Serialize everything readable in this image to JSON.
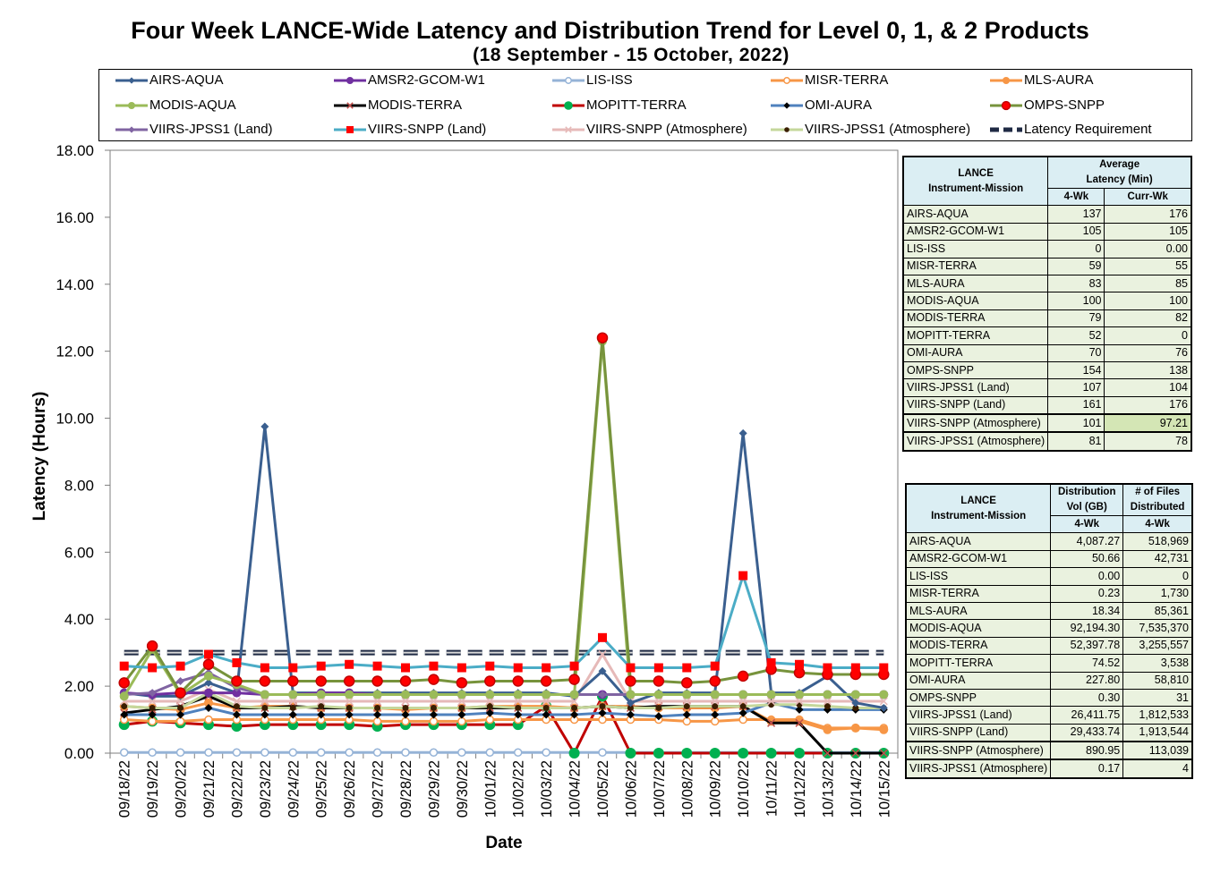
{
  "title": "Four Week LANCE-Wide Latency and Distribution Trend for Level 0, 1, & 2 Products",
  "subtitle": "(18  September   - 15  October,  2022)",
  "chart_data": {
    "type": "line",
    "ylabel": "Latency (Hours)",
    "xlabel": "Date",
    "ylim": [
      0,
      18
    ],
    "yticks": [
      "0.00",
      "2.00",
      "4.00",
      "6.00",
      "8.00",
      "10.00",
      "12.00",
      "14.00",
      "16.00",
      "18.00"
    ],
    "grid": false,
    "legend_position": "top",
    "x": [
      "09/18/22",
      "09/19/22",
      "09/20/22",
      "09/21/22",
      "09/22/22",
      "09/23/22",
      "09/24/22",
      "09/25/22",
      "09/26/22",
      "09/27/22",
      "09/28/22",
      "09/29/22",
      "09/30/22",
      "10/01/22",
      "10/02/22",
      "10/03/22",
      "10/04/22",
      "10/05/22",
      "10/06/22",
      "10/07/22",
      "10/08/22",
      "10/09/22",
      "10/10/22",
      "10/11/22",
      "10/12/22",
      "10/13/22",
      "10/14/22",
      "10/15/22"
    ],
    "series": [
      {
        "name": "AIRS-AQUA",
        "color": "#3a5f8f",
        "marker": "diamond",
        "values": [
          1.8,
          1.7,
          1.7,
          2.1,
          1.8,
          9.75,
          1.8,
          1.8,
          1.8,
          1.8,
          1.8,
          1.8,
          1.8,
          1.8,
          1.8,
          1.8,
          1.7,
          2.45,
          1.5,
          1.8,
          1.8,
          1.8,
          9.55,
          1.8,
          1.8,
          2.3,
          1.5,
          1.35
        ]
      },
      {
        "name": "AMSR2-GCOM-W1",
        "color": "#7030a0",
        "marker": "circle",
        "values": [
          1.8,
          1.75,
          1.8,
          1.8,
          1.8,
          1.75,
          1.75,
          1.8,
          1.8,
          1.75,
          1.75,
          1.75,
          1.75,
          1.75,
          1.75,
          1.75,
          1.75,
          1.75,
          1.75,
          1.75,
          1.75,
          1.75,
          1.75,
          1.75,
          1.75,
          1.75,
          1.75,
          1.75
        ]
      },
      {
        "name": "LIS-ISS",
        "color": "#95b3d7",
        "marker": "circle-open",
        "values": [
          0.02,
          0.02,
          0.02,
          0.02,
          0.02,
          0.02,
          0.02,
          0.02,
          0.02,
          0.02,
          0.02,
          0.02,
          0.02,
          0.02,
          0.02,
          0.02,
          0.02,
          0.02,
          0.02,
          0.02,
          0.02,
          0.02,
          0.02,
          0.02,
          0.02,
          0.02,
          0.02,
          0.02
        ]
      },
      {
        "name": "MISR-TERRA",
        "color": "#f79646",
        "marker": "circle-open",
        "values": [
          1.0,
          0.95,
          0.95,
          1.0,
          1.0,
          1.0,
          1.0,
          1.0,
          1.0,
          0.95,
          0.95,
          0.95,
          0.95,
          1.0,
          1.0,
          1.0,
          1.0,
          1.0,
          1.0,
          1.0,
          0.95,
          0.95,
          1.0,
          1.0,
          1.0,
          0.75,
          0.75,
          0.75
        ]
      },
      {
        "name": "MLS-AURA",
        "color": "#f79646",
        "marker": "circle",
        "values": [
          1.4,
          1.35,
          1.3,
          1.5,
          1.35,
          1.4,
          1.4,
          1.35,
          1.35,
          1.35,
          1.3,
          1.35,
          1.35,
          1.4,
          1.4,
          1.4,
          1.35,
          1.4,
          1.4,
          1.35,
          1.35,
          1.35,
          1.4,
          0.95,
          0.95,
          0.7,
          0.75,
          0.7
        ]
      },
      {
        "name": "MODIS-AQUA",
        "color": "#9bbb59",
        "marker": "circle",
        "values": [
          1.7,
          3.1,
          1.75,
          2.3,
          2.05,
          1.75,
          1.75,
          1.75,
          1.75,
          1.75,
          1.75,
          1.75,
          1.75,
          1.75,
          1.75,
          1.75,
          1.75,
          12.3,
          1.75,
          1.75,
          1.75,
          1.75,
          1.75,
          1.75,
          1.75,
          1.75,
          1.75,
          1.75
        ]
      },
      {
        "name": "MODIS-TERRA",
        "color": "#000000",
        "marker": "x",
        "values": [
          1.2,
          1.3,
          1.4,
          1.7,
          1.35,
          1.35,
          1.4,
          1.35,
          1.35,
          1.35,
          1.35,
          1.35,
          1.35,
          1.35,
          1.35,
          1.35,
          1.35,
          1.4,
          1.35,
          1.4,
          1.4,
          1.4,
          1.4,
          0.9,
          0.9,
          0.0,
          0.0,
          0.0
        ]
      },
      {
        "name": "MOPITT-TERRA",
        "color": "#c00000",
        "marker": "circle-green",
        "values": [
          0.85,
          0.95,
          0.9,
          0.85,
          0.8,
          0.85,
          0.85,
          0.85,
          0.85,
          0.8,
          0.85,
          0.85,
          0.85,
          0.85,
          0.85,
          1.4,
          0.0,
          1.7,
          0.0,
          0.0,
          0.0,
          0.0,
          0.0,
          0.0,
          0.0,
          0.0,
          0.0,
          0.0
        ]
      },
      {
        "name": "OMI-AURA",
        "color": "#4f81bd",
        "marker": "diamond-black",
        "values": [
          1.15,
          1.15,
          1.15,
          1.35,
          1.15,
          1.15,
          1.15,
          1.15,
          1.15,
          1.15,
          1.15,
          1.15,
          1.15,
          1.2,
          1.15,
          1.15,
          1.15,
          1.2,
          1.15,
          1.1,
          1.15,
          1.15,
          1.2,
          1.5,
          1.3,
          1.3,
          1.3,
          1.3
        ]
      },
      {
        "name": "OMPS-SNPP",
        "color": "#77933c",
        "marker": "circle-red",
        "values": [
          2.1,
          3.2,
          1.8,
          2.65,
          2.15,
          2.15,
          2.15,
          2.15,
          2.15,
          2.15,
          2.15,
          2.2,
          2.1,
          2.15,
          2.15,
          2.15,
          2.2,
          12.4,
          2.15,
          2.15,
          2.1,
          2.15,
          2.3,
          2.5,
          2.4,
          2.35,
          2.35,
          2.35
        ]
      },
      {
        "name": "VIIRS-JPSS1 (Land)",
        "color": "#8064a2",
        "marker": "diamond",
        "values": [
          1.75,
          1.8,
          2.15,
          2.4,
          1.95,
          1.75,
          1.75,
          1.75,
          1.75,
          1.75,
          1.75,
          1.75,
          1.75,
          1.75,
          1.75,
          1.75,
          1.75,
          1.75,
          1.75,
          1.75,
          1.75,
          1.75,
          1.75,
          1.75,
          1.75,
          1.75,
          1.75,
          1.75
        ]
      },
      {
        "name": "VIIRS-SNPP (Land)",
        "color": "#4bacc6",
        "marker": "square-red",
        "values": [
          2.6,
          2.55,
          2.6,
          2.95,
          2.7,
          2.55,
          2.55,
          2.6,
          2.65,
          2.6,
          2.55,
          2.6,
          2.55,
          2.6,
          2.55,
          2.55,
          2.6,
          3.45,
          2.55,
          2.55,
          2.55,
          2.6,
          5.3,
          2.7,
          2.65,
          2.55,
          2.55,
          2.55
        ]
      },
      {
        "name": "VIIRS-SNPP (Atmosphere)",
        "color": "#e6b9b8",
        "marker": "x",
        "values": [
          1.55,
          1.55,
          1.55,
          1.9,
          1.55,
          1.55,
          1.55,
          1.55,
          1.55,
          1.55,
          1.55,
          1.55,
          1.55,
          1.55,
          1.55,
          1.55,
          1.55,
          2.95,
          1.55,
          1.55,
          1.55,
          1.55,
          1.55,
          1.55,
          1.55,
          1.55,
          1.55,
          1.55
        ]
      },
      {
        "name": "VIIRS-JPSS1 (Atmosphere)",
        "color": "#c4d79b",
        "marker": "circle-dark",
        "values": [
          1.4,
          1.35,
          1.35,
          1.8,
          1.4,
          1.35,
          1.35,
          1.4,
          1.35,
          1.35,
          1.35,
          1.35,
          1.35,
          1.4,
          1.35,
          1.35,
          1.35,
          1.4,
          1.35,
          1.35,
          1.4,
          1.4,
          1.4,
          1.45,
          1.45,
          1.4,
          1.35,
          1.35
        ]
      },
      {
        "name": "Latency Requirement",
        "color": "#1f2a44",
        "marker": "none",
        "dashed": true,
        "values": [
          3,
          3,
          3,
          3,
          3,
          3,
          3,
          3,
          3,
          3,
          3,
          3,
          3,
          3,
          3,
          3,
          3,
          3,
          3,
          3,
          3,
          3,
          3,
          3,
          3,
          3,
          3,
          3
        ]
      }
    ]
  },
  "latency_table": {
    "head1": "LANCE",
    "head2": "Instrument-Mission",
    "head3": "Average",
    "head4": "Latency (Min)",
    "col1": "4-Wk",
    "col2": "Curr-Wk",
    "rows": [
      {
        "name": "AIRS-AQUA",
        "a": "137",
        "b": "176"
      },
      {
        "name": "AMSR2-GCOM-W1",
        "a": "105",
        "b": "105"
      },
      {
        "name": "LIS-ISS",
        "a": "0",
        "b": "0.00"
      },
      {
        "name": "MISR-TERRA",
        "a": "59",
        "b": "55"
      },
      {
        "name": "MLS-AURA",
        "a": "83",
        "b": "85"
      },
      {
        "name": "MODIS-AQUA",
        "a": "100",
        "b": "100"
      },
      {
        "name": "MODIS-TERRA",
        "a": "79",
        "b": "82"
      },
      {
        "name": "MOPITT-TERRA",
        "a": "52",
        "b": "0"
      },
      {
        "name": "OMI-AURA",
        "a": "70",
        "b": "76"
      },
      {
        "name": "OMPS-SNPP",
        "a": "154",
        "b": "138"
      },
      {
        "name": "VIIRS-JPSS1 (Land)",
        "a": "107",
        "b": "104"
      },
      {
        "name": "VIIRS-SNPP (Land)",
        "a": "161",
        "b": "176"
      },
      {
        "name": "VIIRS-SNPP (Atmosphere)",
        "a": "101",
        "b": "97.21"
      },
      {
        "name": "VIIRS-JPSS1 (Atmosphere)",
        "a": "81",
        "b": "78"
      }
    ]
  },
  "distribution_table": {
    "head1": "LANCE",
    "head2": "Instrument-Mission",
    "head3": "Distribution",
    "head4": "Vol (GB)",
    "head5": "# of Files",
    "head6": "Distributed",
    "col1": "4-Wk",
    "col2": "4-Wk",
    "rows": [
      {
        "name": "AIRS-AQUA",
        "a": "4,087.27",
        "b": "518,969"
      },
      {
        "name": "AMSR2-GCOM-W1",
        "a": "50.66",
        "b": "42,731"
      },
      {
        "name": "LIS-ISS",
        "a": "0.00",
        "b": "0"
      },
      {
        "name": "MISR-TERRA",
        "a": "0.23",
        "b": "1,730"
      },
      {
        "name": "MLS-AURA",
        "a": "18.34",
        "b": "85,361"
      },
      {
        "name": "MODIS-AQUA",
        "a": "92,194.30",
        "b": "7,535,370"
      },
      {
        "name": "MODIS-TERRA",
        "a": "52,397.78",
        "b": "3,255,557"
      },
      {
        "name": "MOPITT-TERRA",
        "a": "74.52",
        "b": "3,538"
      },
      {
        "name": "OMI-AURA",
        "a": "227.80",
        "b": "58,810"
      },
      {
        "name": "OMPS-SNPP",
        "a": "0.30",
        "b": "31"
      },
      {
        "name": "VIIRS-JPSS1 (Land)",
        "a": "26,411.75",
        "b": "1,812,533"
      },
      {
        "name": "VIIRS-SNPP (Land)",
        "a": "29,433.74",
        "b": "1,913,544"
      },
      {
        "name": "VIIRS-SNPP (Atmosphere)",
        "a": "890.95",
        "b": "113,039"
      },
      {
        "name": "VIIRS-JPSS1 (Atmosphere)",
        "a": "0.17",
        "b": "4"
      }
    ]
  }
}
